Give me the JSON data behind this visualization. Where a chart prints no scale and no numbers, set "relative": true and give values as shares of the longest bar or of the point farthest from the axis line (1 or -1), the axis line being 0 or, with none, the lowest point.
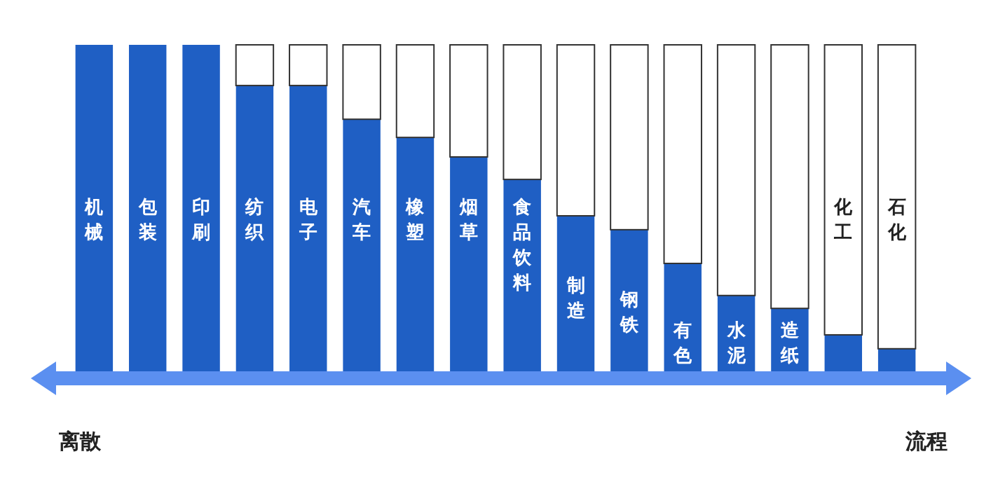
{
  "chart_data": {
    "type": "bar",
    "relative": true,
    "stacked": true,
    "categories": [
      "机械",
      "包装",
      "印刷",
      "纺织",
      "电子",
      "汽车",
      "橡塑",
      "烟草",
      "食品饮料",
      "制造",
      "钢铁",
      "有色",
      "水泥",
      "造纸",
      "化工",
      "石化"
    ],
    "series": [
      {
        "color": "#1f5fc4",
        "values": [
          1,
          1,
          1,
          0.877,
          0.877,
          0.775,
          0.72,
          0.661,
          0.593,
          0.483,
          0.441,
          0.339,
          0.242,
          0.203,
          0.123,
          0.081
        ]
      },
      {
        "color": "#ffffff",
        "values": [
          0,
          0,
          0,
          0.123,
          0.123,
          0.225,
          0.28,
          0.339,
          0.407,
          0.517,
          0.559,
          0.661,
          0.758,
          0.797,
          0.877,
          0.919
        ]
      }
    ],
    "annotations": [
      "离散",
      "流程"
    ]
  }
}
